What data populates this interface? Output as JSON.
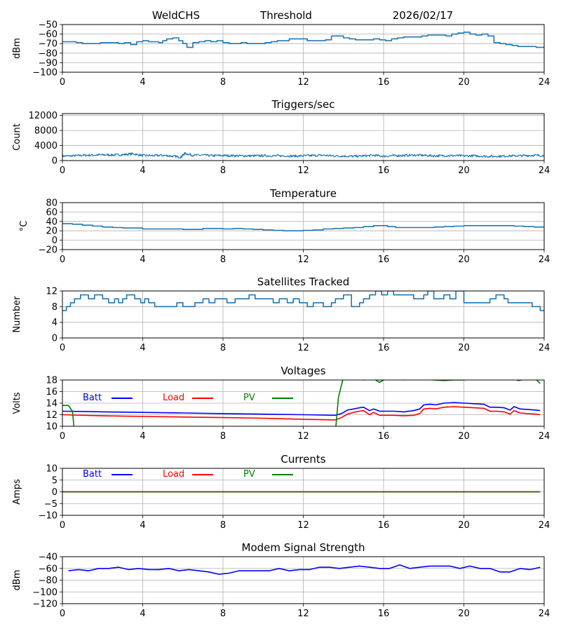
{
  "header": {
    "station": "WeldCHS",
    "mode": "Threshold",
    "date": "2026/02/17"
  },
  "colors": {
    "default_line": "#1f77b4",
    "batt": "#0000ff",
    "load": "#ff0000",
    "pv": "#008000",
    "grid": "#b0b0b0",
    "axis": "#000000"
  },
  "chart_data": [
    {
      "id": "signal",
      "type": "line",
      "title": "",
      "xlabel": "",
      "ylabel": "dBm",
      "xlim": [
        0,
        24
      ],
      "ylim": [
        -100,
        -50
      ],
      "xticks": [
        0,
        4,
        8,
        12,
        16,
        20,
        24
      ],
      "yticks": [
        -100,
        -90,
        -80,
        -70,
        -60,
        -50
      ],
      "ytick_labels": [
        "−100",
        "−90",
        "−80",
        "−70",
        "−60",
        "−50"
      ],
      "grid": true,
      "series": [
        {
          "name": "Signal",
          "color": "#1f77b4",
          "step": true,
          "x": [
            0,
            0.4,
            0.7,
            1.0,
            1.3,
            1.6,
            1.9,
            2.2,
            2.5,
            2.8,
            3.1,
            3.4,
            3.7,
            4.0,
            4.3,
            4.6,
            4.8,
            5.0,
            5.2,
            5.5,
            5.8,
            6.0,
            6.2,
            6.5,
            6.8,
            7.1,
            7.4,
            7.7,
            8.0,
            8.3,
            8.6,
            8.9,
            9.2,
            9.5,
            9.8,
            10.1,
            10.4,
            10.7,
            11.0,
            11.3,
            11.6,
            11.9,
            12.2,
            12.5,
            12.8,
            13.1,
            13.4,
            13.7,
            14.0,
            14.3,
            14.6,
            14.9,
            15.2,
            15.5,
            15.8,
            16.1,
            16.4,
            16.7,
            17.0,
            17.3,
            17.6,
            17.9,
            18.2,
            18.5,
            18.8,
            19.1,
            19.4,
            19.7,
            20.0,
            20.3,
            20.6,
            20.9,
            21.2,
            21.5,
            21.8,
            22.1,
            22.4,
            22.7,
            23.0,
            23.3,
            23.6,
            24.0
          ],
          "y": [
            -68,
            -68,
            -69,
            -70,
            -70,
            -70,
            -69,
            -69,
            -69,
            -70,
            -69,
            -71,
            -68,
            -67,
            -68,
            -68,
            -69,
            -67,
            -65,
            -64,
            -67,
            -70,
            -74,
            -69,
            -68,
            -67,
            -68,
            -67,
            -69,
            -70,
            -70,
            -69,
            -70,
            -70,
            -70,
            -69,
            -68,
            -67,
            -67,
            -65,
            -65,
            -65,
            -67,
            -67,
            -67,
            -66,
            -62,
            -62,
            -64,
            -65,
            -66,
            -66,
            -66,
            -65,
            -66,
            -67,
            -65,
            -64,
            -63,
            -63,
            -63,
            -62,
            -61,
            -61,
            -61,
            -62,
            -60,
            -59,
            -58,
            -60,
            -61,
            -60,
            -62,
            -69,
            -70,
            -71,
            -72,
            -73,
            -73,
            -73,
            -74,
            -73
          ]
        }
      ]
    },
    {
      "id": "triggers",
      "type": "line",
      "title": "Triggers/sec",
      "xlabel": "",
      "ylabel": "Count",
      "xlim": [
        0,
        24
      ],
      "ylim": [
        0,
        12500
      ],
      "xticks": [
        0,
        4,
        8,
        12,
        16,
        20,
        24
      ],
      "yticks": [
        0,
        4000,
        8000,
        12000
      ],
      "ytick_labels": [
        "0",
        "4000",
        "8000",
        "12000"
      ],
      "grid": true,
      "series": [
        {
          "name": "Triggers",
          "color": "#1f77b4",
          "noisy": true,
          "x": [
            0,
            0.5,
            1.0,
            1.5,
            2.0,
            2.5,
            3.0,
            3.5,
            4.0,
            4.5,
            5.0,
            5.5,
            5.9,
            6.1,
            6.5,
            7.0,
            7.5,
            8.0,
            8.5,
            9.0,
            9.5,
            10.0,
            10.5,
            11.0,
            11.5,
            12.0,
            12.5,
            13.0,
            13.5,
            14.0,
            14.5,
            15.0,
            15.5,
            16.0,
            16.5,
            17.0,
            17.5,
            18.0,
            18.5,
            19.0,
            19.5,
            20.0,
            20.5,
            21.0,
            21.5,
            22.0,
            22.5,
            23.0,
            23.5,
            24.0
          ],
          "y": [
            1200,
            1250,
            1400,
            1450,
            1500,
            1500,
            1550,
            1800,
            1350,
            1300,
            1400,
            1150,
            900,
            1900,
            1400,
            1450,
            1300,
            1350,
            1300,
            1250,
            1250,
            1300,
            1250,
            1250,
            1200,
            1250,
            1350,
            1400,
            1250,
            1200,
            1100,
            1250,
            1400,
            1150,
            1300,
            1350,
            1450,
            1400,
            1250,
            1300,
            1300,
            1250,
            1250,
            1150,
            1100,
            1200,
            1250,
            1300,
            1400,
            1300
          ]
        }
      ]
    },
    {
      "id": "temperature",
      "type": "line",
      "title": "Temperature",
      "xlabel": "",
      "ylabel": "°C",
      "xlim": [
        0,
        24
      ],
      "ylim": [
        -20,
        80
      ],
      "xticks": [
        0,
        4,
        8,
        12,
        16,
        20,
        24
      ],
      "yticks": [
        -20,
        0,
        20,
        40,
        60,
        80
      ],
      "ytick_labels": [
        "−20",
        "0",
        "20",
        "40",
        "60",
        "80"
      ],
      "grid": true,
      "series": [
        {
          "name": "Temperature",
          "color": "#1f77b4",
          "step": true,
          "x": [
            0,
            0.5,
            1.0,
            1.5,
            2.0,
            2.5,
            3.0,
            3.5,
            4.0,
            5.0,
            6.0,
            7.0,
            8.0,
            8.5,
            9.0,
            9.5,
            10.0,
            10.5,
            11.0,
            11.5,
            12.0,
            12.5,
            13.0,
            13.5,
            14.0,
            14.5,
            15.0,
            15.5,
            15.8,
            16.2,
            16.6,
            17.0,
            18.0,
            18.5,
            19.0,
            19.5,
            20.0,
            21.0,
            22.0,
            22.5,
            23.0,
            23.5,
            24.0
          ],
          "y": [
            35,
            34,
            32,
            30,
            28,
            27,
            26,
            26,
            24,
            24,
            23,
            25,
            24,
            25,
            24,
            23,
            22,
            21,
            20,
            20,
            21,
            22,
            24,
            25,
            26,
            27,
            29,
            31,
            31,
            29,
            27,
            27,
            27,
            28,
            29,
            30,
            31,
            31,
            31,
            30,
            29,
            28,
            27
          ]
        }
      ]
    },
    {
      "id": "satellites",
      "type": "line",
      "title": "Satellites Tracked",
      "xlabel": "",
      "ylabel": "Number",
      "xlim": [
        0,
        24
      ],
      "ylim": [
        0,
        12
      ],
      "xticks": [
        0,
        4,
        8,
        12,
        16,
        20,
        24
      ],
      "yticks": [
        0,
        4,
        8,
        12
      ],
      "ytick_labels": [
        "0",
        "4",
        "8",
        "12"
      ],
      "grid": true,
      "series": [
        {
          "name": "Satellites",
          "color": "#1f77b4",
          "step": true,
          "x": [
            0,
            0.2,
            0.4,
            0.6,
            0.9,
            1.3,
            1.6,
            2.0,
            2.3,
            2.6,
            2.8,
            3.0,
            3.2,
            3.6,
            3.9,
            4.1,
            4.3,
            4.6,
            5.5,
            5.7,
            6.0,
            6.6,
            7.0,
            7.3,
            7.6,
            8.2,
            8.6,
            9.0,
            9.3,
            9.6,
            10.0,
            10.5,
            10.8,
            11.2,
            11.5,
            11.8,
            12.2,
            12.5,
            13.0,
            13.4,
            13.6,
            14.0,
            14.4,
            14.8,
            15.0,
            15.3,
            15.6,
            15.9,
            16.2,
            16.5,
            17.0,
            17.5,
            18.0,
            18.2,
            18.5,
            19.0,
            19.3,
            19.6,
            20.0,
            20.5,
            21.0,
            21.3,
            21.6,
            22.0,
            22.2,
            22.5,
            23.0,
            23.4,
            23.6,
            23.8,
            24.0
          ],
          "y": [
            7,
            8,
            9,
            10,
            11,
            10,
            11,
            10,
            9,
            10,
            9,
            10,
            11,
            10,
            9,
            10,
            9,
            8,
            8,
            9,
            8,
            9,
            10,
            9,
            10,
            9,
            10,
            10,
            11,
            10,
            10,
            9,
            10,
            9,
            10,
            9,
            8,
            9,
            8,
            9,
            10,
            11,
            8,
            9,
            10,
            11,
            12,
            11,
            12,
            11,
            11,
            10,
            11,
            12,
            10,
            11,
            10,
            12,
            9,
            9,
            9,
            10,
            11,
            10,
            9,
            9,
            9,
            8,
            8,
            7,
            7
          ]
        }
      ]
    },
    {
      "id": "voltages",
      "type": "line",
      "title": "Voltages",
      "xlabel": "",
      "ylabel": "Volts",
      "xlim": [
        0,
        24
      ],
      "ylim": [
        10,
        18
      ],
      "xticks": [
        0,
        4,
        8,
        12,
        16,
        20,
        24
      ],
      "yticks": [
        10,
        12,
        14,
        16,
        18
      ],
      "ytick_labels": [
        "10",
        "12",
        "14",
        "16",
        "18"
      ],
      "grid": true,
      "legend": "top-left (inline)",
      "series": [
        {
          "name": "Batt",
          "color": "#0000ff",
          "x": [
            0,
            2,
            4,
            6,
            8,
            10,
            12,
            13.6,
            13.9,
            14.2,
            14.5,
            14.8,
            15.0,
            15.3,
            15.5,
            15.8,
            16.0,
            16.5,
            17.0,
            17.5,
            17.8,
            18.0,
            18.3,
            18.6,
            19.0,
            19.5,
            20.0,
            20.5,
            21.0,
            21.3,
            21.6,
            22.0,
            22.3,
            22.5,
            22.8,
            23.2,
            23.6,
            23.8
          ],
          "y": [
            12.6,
            12.5,
            12.4,
            12.3,
            12.2,
            12.1,
            12.0,
            11.9,
            12.2,
            12.8,
            13.0,
            13.2,
            13.3,
            12.7,
            13.0,
            12.6,
            12.6,
            12.6,
            12.5,
            12.7,
            13.0,
            13.7,
            13.8,
            13.7,
            14.0,
            14.1,
            14.0,
            13.9,
            13.8,
            13.3,
            13.3,
            13.2,
            12.8,
            13.4,
            13.0,
            12.9,
            12.8,
            12.7
          ]
        },
        {
          "name": "Load",
          "color": "#ff0000",
          "x": [
            0,
            2,
            4,
            6,
            8,
            10,
            12,
            13.6,
            13.9,
            14.2,
            14.5,
            14.8,
            15.0,
            15.3,
            15.5,
            15.8,
            16.0,
            16.5,
            17.0,
            17.5,
            17.8,
            18.0,
            18.3,
            18.6,
            19.0,
            19.5,
            20.0,
            20.5,
            21.0,
            21.3,
            21.6,
            22.0,
            22.3,
            22.5,
            22.8,
            23.2,
            23.6,
            23.8
          ],
          "y": [
            12.0,
            11.8,
            11.7,
            11.6,
            11.5,
            11.4,
            11.2,
            11.1,
            11.5,
            12.1,
            12.4,
            12.6,
            12.7,
            12.0,
            12.4,
            11.9,
            11.9,
            11.9,
            11.8,
            11.9,
            12.2,
            13.0,
            13.1,
            13.0,
            13.3,
            13.4,
            13.3,
            13.2,
            13.1,
            12.6,
            12.6,
            12.5,
            12.1,
            12.7,
            12.3,
            12.2,
            12.1,
            12.0
          ]
        },
        {
          "name": "PV",
          "color": "#008000",
          "x": [
            0,
            0.3,
            0.5,
            0.6,
            13.6,
            13.75,
            14.0,
            14.2,
            15.0,
            15.5,
            15.8,
            16.0,
            16.5,
            17.0,
            17.2,
            18.0,
            18.5,
            19.0,
            19.5,
            20.0,
            21.0,
            22.0,
            22.5,
            22.7,
            23.5,
            23.8
          ],
          "y": [
            13.6,
            13.6,
            12.6,
            9.0,
            9.0,
            15.0,
            18.5,
            18.5,
            18.0,
            18.2,
            17.6,
            18.0,
            18.5,
            18.0,
            18.3,
            18.1,
            18.0,
            17.9,
            18.0,
            18.0,
            18.3,
            18.4,
            18.3,
            17.9,
            18.4,
            17.4
          ]
        }
      ]
    },
    {
      "id": "currents",
      "type": "line",
      "title": "Currents",
      "xlabel": "",
      "ylabel": "Amps",
      "xlim": [
        0,
        24
      ],
      "ylim": [
        -10,
        10
      ],
      "xticks": [
        0,
        4,
        8,
        12,
        16,
        20,
        24
      ],
      "yticks": [
        -10,
        -5,
        0,
        5,
        10
      ],
      "ytick_labels": [
        "−10",
        "−5",
        "0",
        "5",
        "10"
      ],
      "grid": true,
      "legend": "top-left (inline)",
      "series": [
        {
          "name": "Batt",
          "color": "#0000ff",
          "x": [
            0,
            23.8
          ],
          "y": [
            0,
            0
          ]
        },
        {
          "name": "Load",
          "color": "#ff0000",
          "x": [
            0,
            23.8
          ],
          "y": [
            0,
            0
          ]
        },
        {
          "name": "PV",
          "color": "#008000",
          "x": [
            0,
            23.8
          ],
          "y": [
            0,
            0
          ]
        }
      ]
    },
    {
      "id": "modem",
      "type": "line",
      "title": "Modem Signal Strength",
      "xlabel": "",
      "ylabel": "dBm",
      "xlim": [
        0,
        24
      ],
      "ylim": [
        -120,
        -40
      ],
      "xticks": [
        0,
        4,
        8,
        12,
        16,
        20,
        24
      ],
      "yticks": [
        -120,
        -100,
        -80,
        -60,
        -40
      ],
      "ytick_labels": [
        "−120",
        "−100",
        "−80",
        "−60",
        "−40"
      ],
      "grid": true,
      "series": [
        {
          "name": "Modem",
          "color": "#0000ff",
          "x": [
            0.3,
            0.8,
            1.3,
            1.8,
            2.3,
            2.8,
            3.3,
            3.8,
            4.3,
            4.8,
            5.3,
            5.8,
            6.3,
            6.8,
            7.3,
            7.8,
            8.3,
            8.8,
            9.3,
            9.8,
            10.3,
            10.8,
            11.3,
            11.8,
            12.3,
            12.8,
            13.3,
            13.8,
            14.3,
            14.8,
            15.3,
            15.8,
            16.3,
            16.8,
            17.3,
            17.8,
            18.3,
            18.8,
            19.3,
            19.8,
            20.3,
            20.8,
            21.3,
            21.8,
            22.3,
            22.8,
            23.3,
            23.8
          ],
          "y": [
            -64,
            -62,
            -64,
            -60,
            -60,
            -58,
            -62,
            -60,
            -62,
            -62,
            -60,
            -64,
            -62,
            -64,
            -66,
            -70,
            -68,
            -64,
            -64,
            -64,
            -64,
            -60,
            -64,
            -62,
            -62,
            -58,
            -58,
            -60,
            -58,
            -56,
            -58,
            -60,
            -60,
            -54,
            -60,
            -58,
            -56,
            -56,
            -56,
            -60,
            -56,
            -60,
            -60,
            -66,
            -66,
            -60,
            -62,
            -58
          ]
        }
      ]
    }
  ]
}
